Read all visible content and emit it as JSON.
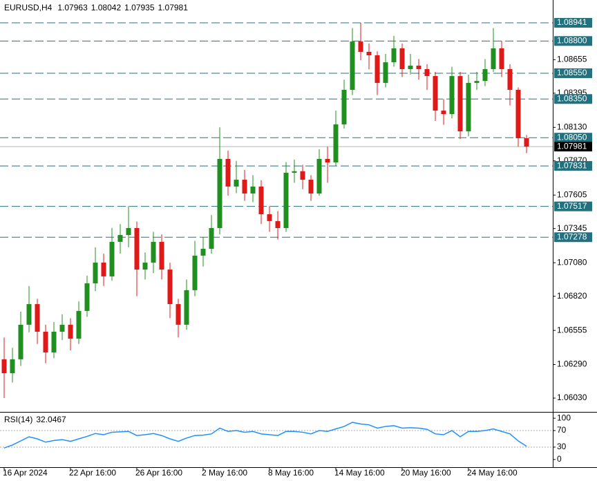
{
  "chart_data": [
    {
      "type": "candlestick",
      "symbol": "EURUSD,H4",
      "header_ohlc": [
        1.07963,
        1.08042,
        1.07935,
        1.07981
      ],
      "categories": [
        "16 Apr 2024",
        null,
        null,
        null,
        null,
        null,
        null,
        null,
        "22 Apr 16:00",
        null,
        null,
        null,
        null,
        null,
        null,
        null,
        "26 Apr 16:00",
        null,
        null,
        null,
        null,
        null,
        null,
        null,
        "2 May 16:00",
        null,
        null,
        null,
        null,
        null,
        null,
        null,
        "8 May 16:00",
        null,
        null,
        null,
        null,
        null,
        null,
        null,
        "14 May 16:00",
        null,
        null,
        null,
        null,
        null,
        null,
        null,
        "20 May 16:00",
        null,
        null,
        null,
        null,
        null,
        null,
        null,
        "24 May 16:00",
        null,
        null,
        null,
        null,
        null,
        null,
        null
      ],
      "open": [
        1.06331,
        1.06223,
        1.06331,
        1.06599,
        1.06759,
        1.06545,
        1.06384,
        1.06545,
        1.06599,
        1.06491,
        1.06706,
        1.0692,
        1.07081,
        1.06974,
        1.07242,
        1.07295,
        1.07349,
        1.07027,
        1.07081,
        1.07242,
        1.07027,
        1.06759,
        1.06599,
        1.06867,
        1.07135,
        1.07188,
        1.07349,
        1.07885,
        1.07671,
        1.07724,
        1.07617,
        1.07671,
        1.07456,
        1.07403,
        1.07349,
        1.07778,
        1.0779,
        1.07724,
        1.07617,
        1.07885,
        1.07858,
        1.08153,
        1.08421,
        1.08796,
        1.08716,
        1.08689,
        1.08475,
        1.08635,
        1.08743,
        1.08582,
        1.08609,
        1.08582,
        1.08528,
        1.0826,
        1.08233,
        1.08528,
        1.08099,
        1.08475,
        1.0849,
        1.08582,
        1.08743,
        1.08582,
        1.08421,
        1.08046
      ],
      "high": [
        1.065,
        1.0642,
        1.067,
        1.069,
        1.068,
        1.066,
        1.0662,
        1.0668,
        1.0665,
        1.0678,
        1.0698,
        1.072,
        1.0715,
        1.0735,
        1.0738,
        1.0752,
        1.074,
        1.0716,
        1.0732,
        1.073,
        1.0708,
        1.068,
        1.0695,
        1.0725,
        1.0728,
        1.0745,
        1.0813,
        1.0795,
        1.0787,
        1.078,
        1.0776,
        1.0772,
        1.0752,
        1.0748,
        1.0786,
        1.0788,
        1.0784,
        1.0776,
        1.0796,
        1.0798,
        1.0826,
        1.085,
        1.089,
        1.08941,
        1.0878,
        1.0872,
        1.087,
        1.0884,
        1.0878,
        1.087,
        1.0866,
        1.0862,
        1.0856,
        1.0835,
        1.086,
        1.0856,
        1.0854,
        1.0856,
        1.0866,
        1.089,
        1.088,
        1.0862,
        1.0844,
        1.0807
      ],
      "low": [
        1.0603,
        1.0615,
        1.0628,
        1.0654,
        1.0645,
        1.063,
        1.0634,
        1.0648,
        1.064,
        1.0645,
        1.0666,
        1.0686,
        1.069,
        1.0694,
        1.0715,
        1.072,
        1.0682,
        1.0695,
        1.07,
        1.0695,
        1.0665,
        1.065,
        1.0656,
        1.0682,
        1.0705,
        1.0715,
        1.073,
        1.076,
        1.0762,
        1.0756,
        1.0755,
        1.0738,
        1.0732,
        1.0726,
        1.0732,
        1.077,
        1.0765,
        1.0756,
        1.076,
        1.077,
        1.0783,
        1.0812,
        1.0838,
        1.0865,
        1.0858,
        1.0838,
        1.0844,
        1.086,
        1.0852,
        1.0854,
        1.085,
        1.0842,
        1.0818,
        1.0815,
        1.082,
        1.0804,
        1.0806,
        1.0842,
        1.0845,
        1.0856,
        1.0852,
        1.083,
        1.0798,
        1.0793
      ],
      "close": [
        1.06223,
        1.06331,
        1.06599,
        1.06759,
        1.06545,
        1.06384,
        1.06545,
        1.06599,
        1.06491,
        1.06706,
        1.0692,
        1.07081,
        1.06974,
        1.07242,
        1.07295,
        1.07349,
        1.07027,
        1.07081,
        1.07242,
        1.07027,
        1.06759,
        1.06599,
        1.06867,
        1.07135,
        1.07188,
        1.07349,
        1.07885,
        1.07671,
        1.07724,
        1.07617,
        1.07671,
        1.07456,
        1.07403,
        1.07349,
        1.07778,
        1.0779,
        1.07724,
        1.07617,
        1.07885,
        1.07858,
        1.08153,
        1.08421,
        1.08796,
        1.08716,
        1.08689,
        1.08475,
        1.08635,
        1.08743,
        1.08582,
        1.08609,
        1.08582,
        1.08528,
        1.0826,
        1.08233,
        1.08528,
        1.08099,
        1.08475,
        1.0849,
        1.08582,
        1.08743,
        1.08582,
        1.08421,
        1.08046,
        1.07981
      ],
      "up_color": "#1f8f1f",
      "down_color": "#e01818",
      "ylim": [
        1.05923,
        1.09118
      ],
      "yticks": [
        1.08655,
        1.08395,
        {
          "value": 1.0813,
          "label": "1.08130"
        },
        {
          "value": 1.0787,
          "label": "1.07870"
        },
        1.07605,
        1.07345,
        {
          "value": 1.0708,
          "label": "1.07080"
        },
        {
          "value": 1.0682,
          "label": "1.06820"
        },
        1.06555,
        {
          "value": 1.0629,
          "label": "1.06290"
        },
        {
          "value": 1.0603,
          "label": "1.06030"
        }
      ],
      "levels": [
        1.08941,
        {
          "value": 1.088,
          "label": "1.08800"
        },
        {
          "value": 1.0855,
          "label": "1.08550"
        },
        {
          "value": 1.0835,
          "label": "1.08350"
        },
        {
          "value": 1.0805,
          "label": "1.08050"
        },
        1.07831,
        1.07517,
        1.07278
      ],
      "level_color": "#23707e",
      "current_price": 1.07981
    },
    {
      "type": "line",
      "title": "RSI(14)",
      "values": [
        28,
        35,
        45,
        55,
        50,
        42,
        46,
        48,
        44,
        50,
        56,
        63,
        60,
        66,
        67,
        68,
        58,
        60,
        63,
        58,
        50,
        44,
        52,
        58,
        59,
        62,
        76,
        68,
        70,
        66,
        68,
        62,
        60,
        58,
        68,
        68,
        66,
        62,
        70,
        68,
        74,
        80,
        90,
        86,
        84,
        76,
        80,
        82,
        76,
        77,
        76,
        73,
        62,
        60,
        70,
        55,
        68,
        68,
        70,
        74,
        68,
        62,
        45,
        32.0467
      ],
      "color": "#1e90ff",
      "ylim": [
        -18.6,
        111.9
      ],
      "yticks": [
        100,
        70,
        30,
        0
      ],
      "levels": [
        70,
        30
      ]
    }
  ]
}
